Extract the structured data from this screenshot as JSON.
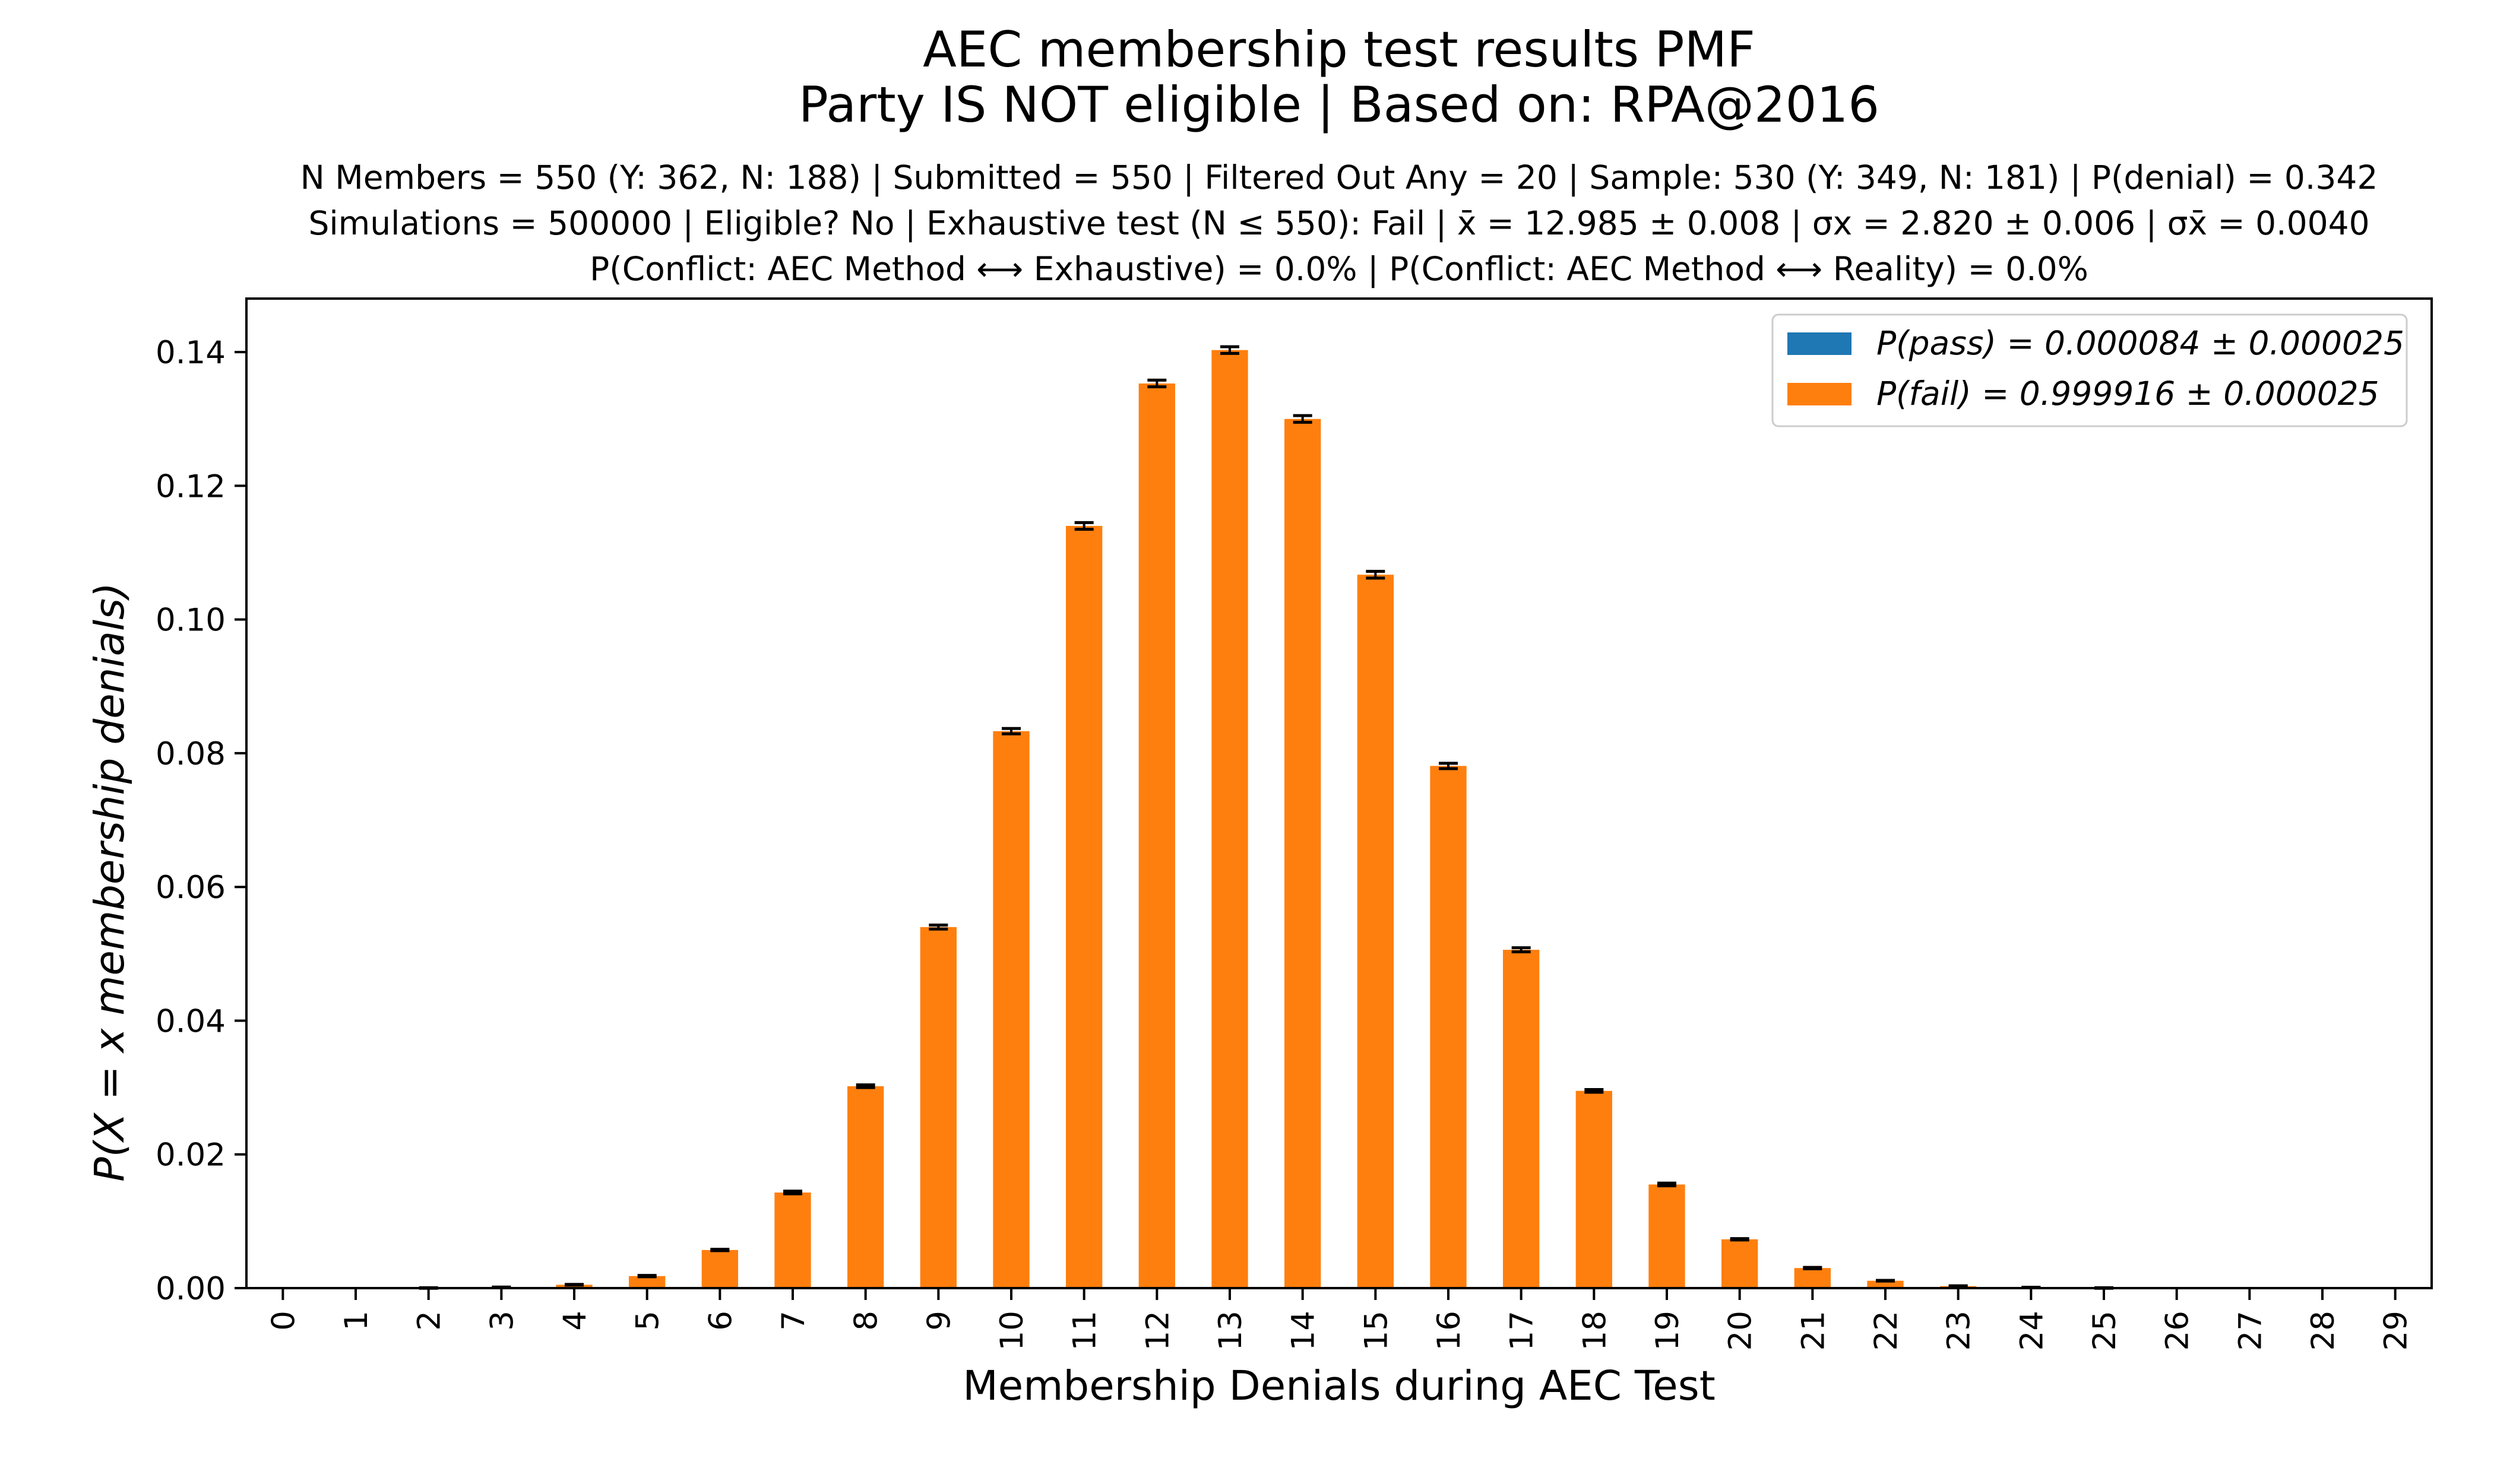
{
  "chart_data": {
    "type": "bar",
    "title": "AEC membership test results PMF",
    "title_line2": "Party IS NOT eligible | Based on: RPA@2016",
    "info_lines": [
      "N Members = 550 (Y: 362, N: 188) | Submitted = 550 | Filtered Out Any = 20 | Sample: 530 (Y: 349, N: 181) | P(denial) = 0.342",
      "Simulations = 500000 | Eligible? No | Exhaustive test (N ≤ 550): Fail | x̄ = 12.985 ± 0.008 | σx = 2.820 ± 0.006 | σx̄ = 0.0040",
      "P(Conflict: AEC Method ⟷ Exhaustive) = 0.0% | P(Conflict: AEC Method ⟷ Reality) = 0.0%"
    ],
    "xlabel": "Membership Denials during AEC Test",
    "ylabel": "P(X = x membership denials)",
    "ylim": [
      0,
      0.148
    ],
    "yticks": [
      0.0,
      0.02,
      0.04,
      0.06,
      0.08,
      0.1,
      0.12,
      0.14
    ],
    "ytick_labels": [
      "0.00",
      "0.02",
      "0.04",
      "0.06",
      "0.08",
      "0.10",
      "0.12",
      "0.14"
    ],
    "categories": [
      "0",
      "1",
      "2",
      "3",
      "4",
      "5",
      "6",
      "7",
      "8",
      "9",
      "10",
      "11",
      "12",
      "13",
      "14",
      "15",
      "16",
      "17",
      "18",
      "19",
      "20",
      "21",
      "22",
      "23",
      "24",
      "25",
      "26",
      "27",
      "28",
      "29"
    ],
    "legend_position": "top-right",
    "series": [
      {
        "name": "P(pass) = 0.000084 ± 0.000025",
        "color": "#1f77b4",
        "values": [
          0,
          0,
          0,
          0,
          0,
          0,
          0,
          0,
          0,
          0,
          0,
          0,
          0,
          0,
          0,
          0,
          0,
          0,
          0,
          0,
          0,
          0,
          0,
          0,
          0,
          0,
          0,
          0,
          0,
          0
        ]
      },
      {
        "name": "P(fail) = 0.999916 ± 0.000025",
        "color": "#ff7f0e",
        "values": [
          0,
          0,
          2e-05,
          0.00012,
          0.0005,
          0.0018,
          0.0057,
          0.0143,
          0.0302,
          0.054,
          0.0833,
          0.114,
          0.1353,
          0.1403,
          0.13,
          0.1067,
          0.0781,
          0.0506,
          0.0295,
          0.0155,
          0.0073,
          0.003,
          0.0011,
          0.0003,
          8e-05,
          2e-05,
          0,
          0,
          0,
          0
        ],
        "errors": [
          0,
          0,
          0,
          0,
          5e-05,
          0.0001,
          0.0001,
          0.0002,
          0.0002,
          0.0003,
          0.0004,
          0.0005,
          0.0005,
          0.0005,
          0.0005,
          0.0005,
          0.0004,
          0.0003,
          0.0002,
          0.0002,
          0.0001,
          0.0001,
          5e-05,
          0,
          0,
          0,
          0,
          0,
          0,
          0
        ]
      }
    ],
    "errorbar_color": "#000000",
    "axis_color": "#000000"
  }
}
